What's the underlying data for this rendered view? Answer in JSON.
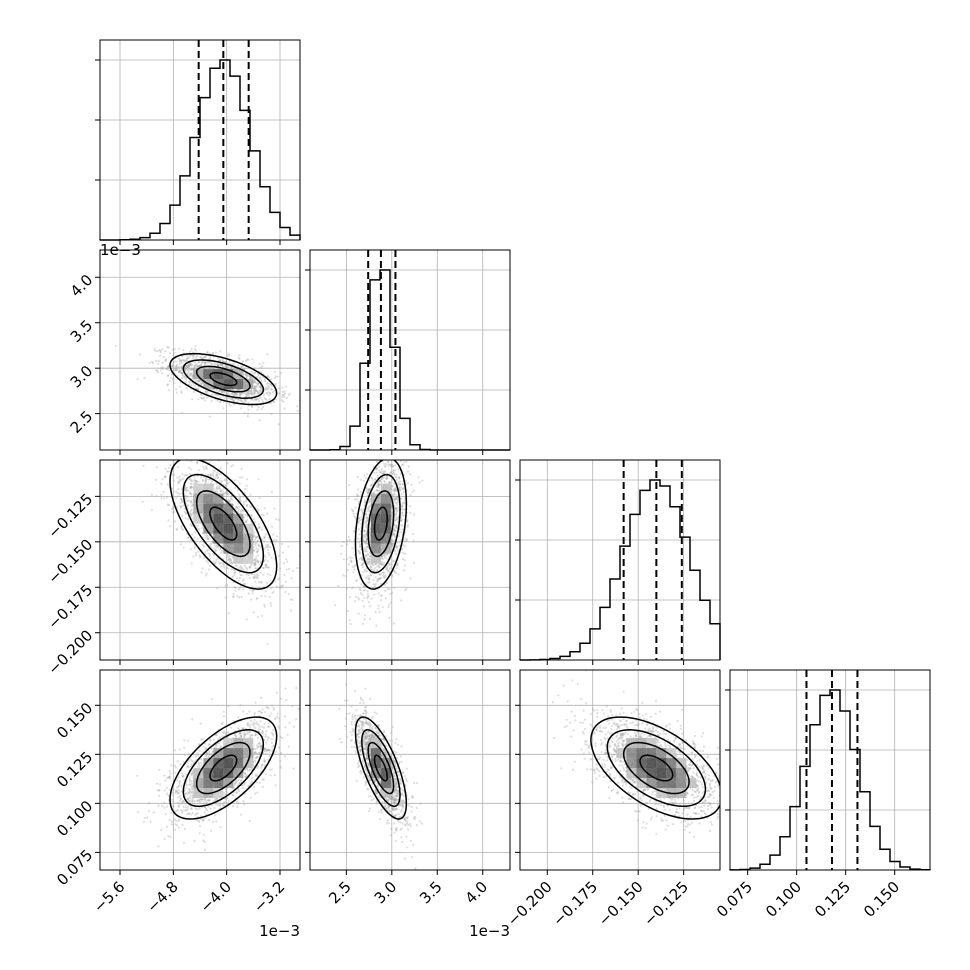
{
  "chart_data": {
    "type": "corner",
    "grid": true,
    "colors": {
      "hist": "#000000",
      "points": "#a0a0a0",
      "density": "#000000",
      "contour": "#000000",
      "grid": "#b0b0b0"
    },
    "parameters": [
      {
        "range": [
          -0.0059,
          -0.0029
        ],
        "ticks": [
          -0.0056,
          -0.0048,
          -0.004,
          -0.0032
        ],
        "tick_labels": [
          "−5.6",
          "−4.8",
          "−4.0",
          "−3.2"
        ],
        "offset_label": "1e−3",
        "mean": -0.00405,
        "sigma": 0.0004,
        "quantiles": [
          -0.00442,
          -0.00405,
          -0.00367
        ]
      },
      {
        "range": [
          0.0021,
          0.0043
        ],
        "ticks": [
          0.0025,
          0.003,
          0.0035,
          0.004
        ],
        "tick_labels": [
          "2.5",
          "3.0",
          "3.5",
          "4.0"
        ],
        "offset_label": "1e−3",
        "mean": 0.00288,
        "sigma": 0.00014,
        "quantiles": [
          0.00274,
          0.00288,
          0.00304
        ]
      },
      {
        "range": [
          -0.215,
          -0.105
        ],
        "ticks": [
          -0.2,
          -0.175,
          -0.15,
          -0.125
        ],
        "tick_labels": [
          "−0.200",
          "−0.175",
          "−0.150",
          "−0.125"
        ],
        "offset_label": "",
        "mean": -0.14,
        "sigma": 0.018,
        "quantiles": [
          -0.158,
          -0.14,
          -0.126
        ]
      },
      {
        "range": [
          0.066,
          0.168
        ],
        "ticks": [
          0.075,
          0.1,
          0.125,
          0.15
        ],
        "tick_labels": [
          "0.075",
          "0.100",
          "0.125",
          "0.150"
        ],
        "offset_label": "",
        "mean": 0.118,
        "sigma": 0.013,
        "quantiles": [
          0.105,
          0.118,
          0.131
        ]
      }
    ],
    "correlations": [
      {
        "row": 1,
        "col": 0,
        "rho": -0.55
      },
      {
        "row": 2,
        "col": 0,
        "rho": -0.65
      },
      {
        "row": 2,
        "col": 1,
        "rho": 0.3
      },
      {
        "row": 3,
        "col": 0,
        "rho": 0.62
      },
      {
        "row": 3,
        "col": 1,
        "rho": -0.7
      },
      {
        "row": 3,
        "col": 2,
        "rho": -0.55
      }
    ]
  }
}
